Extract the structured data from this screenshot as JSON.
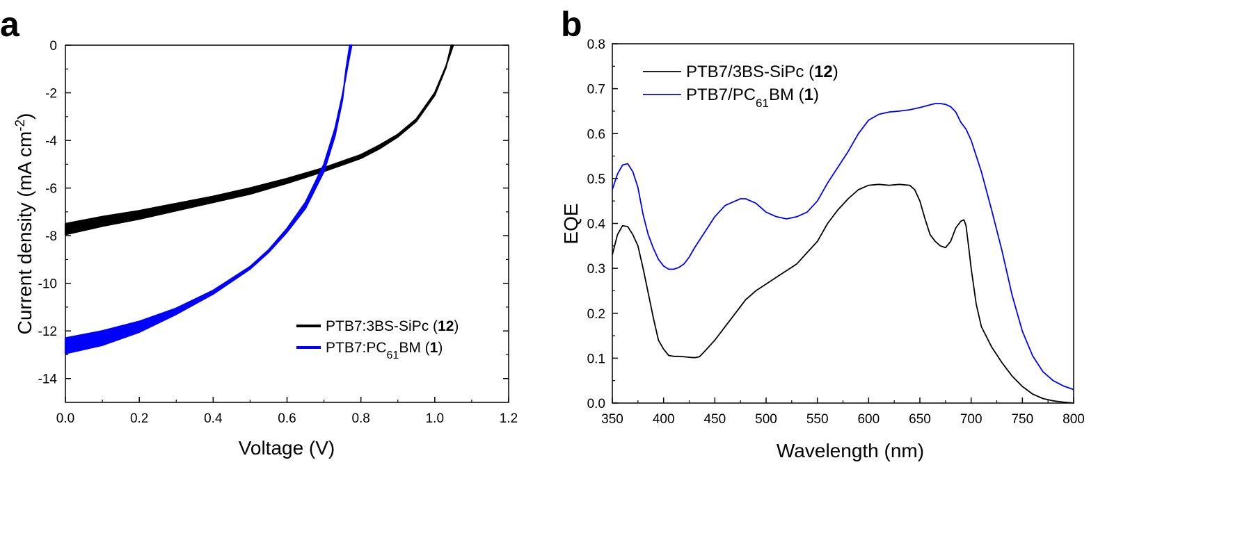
{
  "chart_data": [
    {
      "type": "line",
      "panel": "a",
      "xlabel": "Voltage (V)",
      "ylabel_main": "Current density (mA cm",
      "ylabel_sup": "-2",
      "ylabel_close": ")",
      "xlim": [
        0.0,
        1.2
      ],
      "ylim": [
        -15,
        0
      ],
      "xticks": [
        "0.0",
        "0.2",
        "0.4",
        "0.6",
        "0.8",
        "1.0",
        "1.2"
      ],
      "yticks": [
        "0",
        "-2",
        "-4",
        "-6",
        "-8",
        "-10",
        "-12",
        "-14"
      ],
      "grid": false,
      "legend_position": "lower-right",
      "series": [
        {
          "color": "#000000",
          "legend": {
            "pre": "PTB7:3BS-SiPc (",
            "bold": "12",
            "post": ")"
          },
          "upper": [
            [
              0.0,
              -7.5
            ],
            [
              0.1,
              -7.2
            ],
            [
              0.2,
              -6.95
            ],
            [
              0.3,
              -6.65
            ],
            [
              0.4,
              -6.35
            ],
            [
              0.5,
              -6.0
            ],
            [
              0.6,
              -5.6
            ],
            [
              0.7,
              -5.15
            ],
            [
              0.8,
              -4.6
            ],
            [
              0.85,
              -4.2
            ],
            [
              0.9,
              -3.75
            ],
            [
              0.95,
              -3.1
            ],
            [
              1.0,
              -2.0
            ],
            [
              1.03,
              -0.9
            ],
            [
              1.05,
              0.0
            ]
          ],
          "lower": [
            [
              0.0,
              -7.95
            ],
            [
              0.1,
              -7.6
            ],
            [
              0.2,
              -7.3
            ],
            [
              0.3,
              -6.95
            ],
            [
              0.4,
              -6.6
            ],
            [
              0.5,
              -6.25
            ],
            [
              0.6,
              -5.8
            ],
            [
              0.7,
              -5.3
            ],
            [
              0.8,
              -4.75
            ],
            [
              0.85,
              -4.35
            ],
            [
              0.9,
              -3.85
            ],
            [
              0.95,
              -3.2
            ],
            [
              1.0,
              -2.1
            ],
            [
              1.03,
              -0.95
            ],
            [
              1.045,
              0.0
            ]
          ]
        },
        {
          "color": "#0000FF",
          "legend": {
            "pre": "PTB7:PC",
            "sub": "61",
            "post_pre": "BM (",
            "bold": "1",
            "post": ")"
          },
          "upper": [
            [
              0.0,
              -12.3
            ],
            [
              0.1,
              -12.0
            ],
            [
              0.2,
              -11.6
            ],
            [
              0.3,
              -11.05
            ],
            [
              0.4,
              -10.3
            ],
            [
              0.5,
              -9.3
            ],
            [
              0.55,
              -8.6
            ],
            [
              0.6,
              -7.7
            ],
            [
              0.65,
              -6.6
            ],
            [
              0.7,
              -5.0
            ],
            [
              0.73,
              -3.5
            ],
            [
              0.75,
              -2.1
            ],
            [
              0.765,
              -0.8
            ],
            [
              0.775,
              0.0
            ]
          ],
          "lower": [
            [
              0.0,
              -12.95
            ],
            [
              0.1,
              -12.6
            ],
            [
              0.2,
              -12.05
            ],
            [
              0.3,
              -11.3
            ],
            [
              0.4,
              -10.45
            ],
            [
              0.5,
              -9.4
            ],
            [
              0.55,
              -8.7
            ],
            [
              0.6,
              -7.85
            ],
            [
              0.65,
              -6.85
            ],
            [
              0.7,
              -5.3
            ],
            [
              0.73,
              -3.8
            ],
            [
              0.75,
              -2.3
            ],
            [
              0.76,
              -1.0
            ],
            [
              0.77,
              0.0
            ]
          ]
        }
      ]
    },
    {
      "type": "line",
      "panel": "b",
      "xlabel": "Wavelength (nm)",
      "ylabel": "EQE",
      "xlim": [
        350,
        800
      ],
      "ylim": [
        0.0,
        0.8
      ],
      "xticks": [
        "350",
        "400",
        "450",
        "500",
        "550",
        "600",
        "650",
        "700",
        "750",
        "800"
      ],
      "yticks": [
        "0.0",
        "0.1",
        "0.2",
        "0.3",
        "0.4",
        "0.5",
        "0.6",
        "0.7",
        "0.8"
      ],
      "grid": false,
      "legend_position": "top-left",
      "series": [
        {
          "color": "#000000",
          "legend": {
            "pre": "PTB7/3BS-SiPc (",
            "bold": "12",
            "post": ")"
          },
          "points": [
            [
              350,
              0.33
            ],
            [
              355,
              0.375
            ],
            [
              360,
              0.395
            ],
            [
              365,
              0.393
            ],
            [
              370,
              0.375
            ],
            [
              375,
              0.35
            ],
            [
              380,
              0.3
            ],
            [
              385,
              0.245
            ],
            [
              390,
              0.19
            ],
            [
              395,
              0.14
            ],
            [
              400,
              0.12
            ],
            [
              405,
              0.106
            ],
            [
              410,
              0.104
            ],
            [
              415,
              0.104
            ],
            [
              420,
              0.103
            ],
            [
              425,
              0.102
            ],
            [
              430,
              0.101
            ],
            [
              435,
              0.103
            ],
            [
              440,
              0.115
            ],
            [
              450,
              0.14
            ],
            [
              460,
              0.17
            ],
            [
              470,
              0.2
            ],
            [
              480,
              0.23
            ],
            [
              490,
              0.25
            ],
            [
              500,
              0.265
            ],
            [
              510,
              0.28
            ],
            [
              520,
              0.295
            ],
            [
              530,
              0.31
            ],
            [
              540,
              0.335
            ],
            [
              550,
              0.36
            ],
            [
              560,
              0.4
            ],
            [
              570,
              0.43
            ],
            [
              580,
              0.455
            ],
            [
              590,
              0.475
            ],
            [
              600,
              0.485
            ],
            [
              610,
              0.487
            ],
            [
              620,
              0.485
            ],
            [
              630,
              0.487
            ],
            [
              640,
              0.485
            ],
            [
              645,
              0.475
            ],
            [
              650,
              0.45
            ],
            [
              655,
              0.41
            ],
            [
              660,
              0.375
            ],
            [
              665,
              0.36
            ],
            [
              670,
              0.35
            ],
            [
              675,
              0.346
            ],
            [
              680,
              0.36
            ],
            [
              685,
              0.39
            ],
            [
              690,
              0.405
            ],
            [
              693,
              0.408
            ],
            [
              695,
              0.395
            ],
            [
              698,
              0.34
            ],
            [
              700,
              0.3
            ],
            [
              705,
              0.22
            ],
            [
              710,
              0.17
            ],
            [
              720,
              0.125
            ],
            [
              730,
              0.09
            ],
            [
              740,
              0.06
            ],
            [
              750,
              0.037
            ],
            [
              760,
              0.02
            ],
            [
              770,
              0.01
            ],
            [
              780,
              0.005
            ],
            [
              790,
              0.002
            ],
            [
              800,
              0.0
            ]
          ]
        },
        {
          "color": "#0000FF",
          "legend": {
            "pre": "PTB7/PC",
            "sub": "61",
            "post_pre": "BM (",
            "bold": "1",
            "post": ")"
          },
          "points": [
            [
              350,
              0.475
            ],
            [
              355,
              0.51
            ],
            [
              360,
              0.53
            ],
            [
              365,
              0.533
            ],
            [
              370,
              0.515
            ],
            [
              375,
              0.48
            ],
            [
              380,
              0.42
            ],
            [
              385,
              0.375
            ],
            [
              390,
              0.345
            ],
            [
              395,
              0.32
            ],
            [
              400,
              0.305
            ],
            [
              405,
              0.298
            ],
            [
              410,
              0.298
            ],
            [
              415,
              0.302
            ],
            [
              420,
              0.31
            ],
            [
              425,
              0.325
            ],
            [
              430,
              0.345
            ],
            [
              440,
              0.38
            ],
            [
              450,
              0.415
            ],
            [
              460,
              0.44
            ],
            [
              470,
              0.45
            ],
            [
              475,
              0.455
            ],
            [
              480,
              0.455
            ],
            [
              485,
              0.45
            ],
            [
              490,
              0.445
            ],
            [
              500,
              0.425
            ],
            [
              510,
              0.415
            ],
            [
              520,
              0.41
            ],
            [
              530,
              0.415
            ],
            [
              540,
              0.425
            ],
            [
              550,
              0.45
            ],
            [
              560,
              0.49
            ],
            [
              570,
              0.525
            ],
            [
              580,
              0.56
            ],
            [
              590,
              0.6
            ],
            [
              600,
              0.63
            ],
            [
              610,
              0.643
            ],
            [
              620,
              0.648
            ],
            [
              630,
              0.65
            ],
            [
              640,
              0.653
            ],
            [
              650,
              0.658
            ],
            [
              660,
              0.664
            ],
            [
              665,
              0.667
            ],
            [
              670,
              0.667
            ],
            [
              675,
              0.665
            ],
            [
              680,
              0.66
            ],
            [
              685,
              0.648
            ],
            [
              690,
              0.625
            ],
            [
              695,
              0.61
            ],
            [
              700,
              0.585
            ],
            [
              710,
              0.515
            ],
            [
              720,
              0.43
            ],
            [
              730,
              0.34
            ],
            [
              740,
              0.24
            ],
            [
              750,
              0.16
            ],
            [
              760,
              0.105
            ],
            [
              770,
              0.07
            ],
            [
              780,
              0.05
            ],
            [
              790,
              0.038
            ],
            [
              800,
              0.03
            ]
          ]
        }
      ]
    }
  ]
}
